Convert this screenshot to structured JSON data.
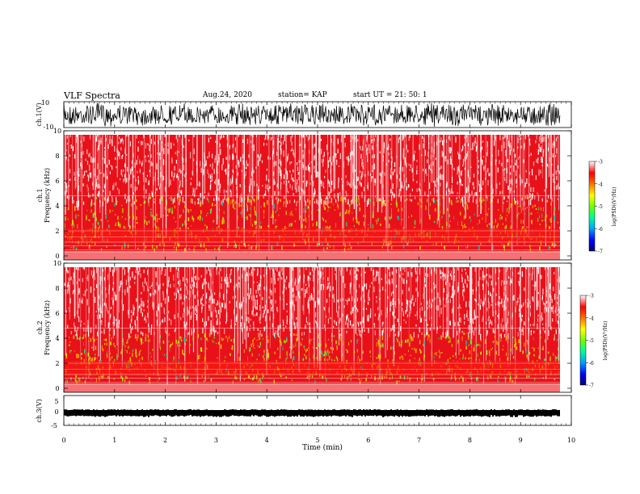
{
  "header": {
    "title": "VLF Spectra",
    "date": "Aug.24, 2020",
    "station": "station= KAP",
    "start": "start  UT =   21: 50:  1"
  },
  "colors": {
    "spectrogram_base": "#e8111a",
    "waveform": "#000000",
    "colorbar_stops": [
      "#000080",
      "#0000ff",
      "#00a0ff",
      "#00ff80",
      "#80ff00",
      "#ffff00",
      "#ff8000",
      "#ff0000",
      "#ffffff"
    ]
  },
  "colorbar": {
    "label": "log(PSD)(V²/Hz)",
    "ticks": [
      "-3",
      "-4",
      "-5",
      "-6",
      "-7"
    ]
  },
  "chart_data": [
    {
      "type": "line",
      "id": "ch1",
      "ylabel": "ch.1(V)",
      "ylim": [
        -10,
        10
      ],
      "yticks": [
        "10",
        "-10"
      ],
      "description": "dense oscillating waveform saturating near ±10 V across 0–9.8 min"
    },
    {
      "type": "heatmap",
      "id": "ch1-spec",
      "ylabel": "ch.1\nFrequency (kHz)",
      "ylim": [
        0,
        10
      ],
      "yticks": [
        "0",
        "2",
        "4",
        "6",
        "8",
        "10"
      ],
      "x_extent_min": [
        0,
        9.83
      ],
      "zlim": [
        -7,
        -3
      ]
    },
    {
      "type": "heatmap",
      "id": "ch2-spec",
      "ylabel": "ch.2\nFrequency (kHz)",
      "ylim": [
        0,
        10
      ],
      "yticks": [
        "0",
        "2",
        "4",
        "6",
        "8",
        "10"
      ],
      "x_extent_min": [
        0,
        9.83
      ],
      "zlim": [
        -7,
        -3
      ]
    },
    {
      "type": "line",
      "id": "ch3",
      "ylabel": "ch.3(V)",
      "ylim": [
        -5,
        5
      ],
      "yticks": [
        "5",
        "0",
        "-5"
      ],
      "description": "thick near-constant band around -0.5 V"
    }
  ],
  "xaxis": {
    "label": "Time (min)",
    "ticks": [
      "0",
      "1",
      "2",
      "3",
      "4",
      "5",
      "6",
      "7",
      "8",
      "9",
      "10"
    ],
    "xlim": [
      0,
      10
    ]
  }
}
